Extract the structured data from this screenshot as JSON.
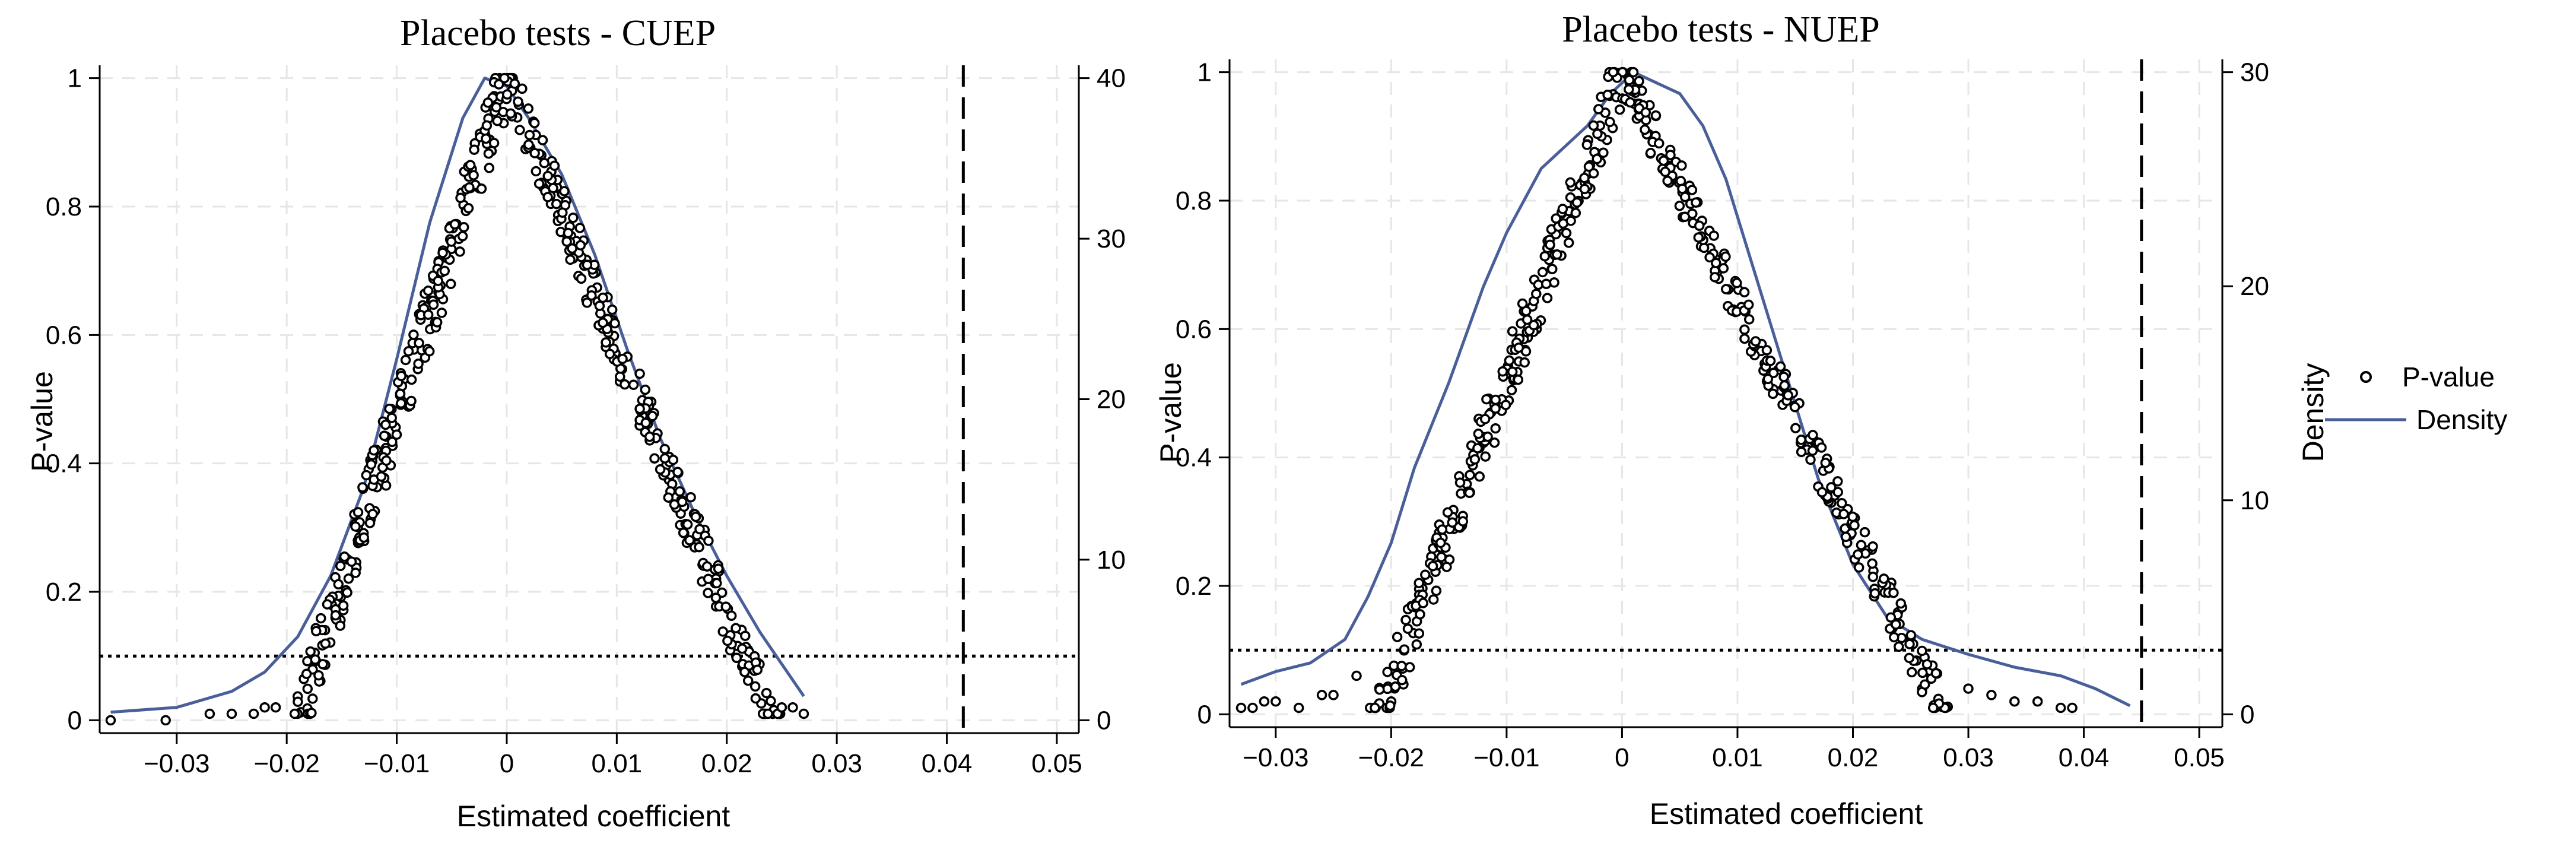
{
  "chart_data": [
    {
      "type": "scatter",
      "title": "Placebo tests - CUEP",
      "xlabel": "Estimated coefficient",
      "ylabel": "P-value",
      "y2label": "",
      "xlim": [
        -0.037,
        0.052
      ],
      "ylim": [
        -0.02,
        1.02
      ],
      "y2lim": [
        -0.8,
        40.8
      ],
      "x_ticks": [
        -0.03,
        -0.02,
        -0.01,
        0,
        0.01,
        0.02,
        0.03,
        0.04,
        0.05
      ],
      "x_tick_labels": [
        "−0.03",
        "−0.02",
        "−0.01",
        "0",
        "0.01",
        "0.02",
        "0.03",
        "0.04",
        "0.05"
      ],
      "y_ticks": [
        0,
        0.2,
        0.4,
        0.6,
        0.8,
        1
      ],
      "y_tick_labels": [
        "0",
        "0.2",
        "0.4",
        "0.6",
        "0.8",
        "1"
      ],
      "y2_ticks": [
        0,
        10,
        20,
        30,
        40
      ],
      "y2_tick_labels": [
        "0",
        "10",
        "20",
        "30",
        "40"
      ],
      "grid": true,
      "reference_lines": {
        "hline_pvalue": 0.1,
        "vline_coefficient": 0.0415
      },
      "series": [
        {
          "name": "P-value",
          "kind": "scatter",
          "axis": "left",
          "peak": 0,
          "left_edge_x": [
            -0.036,
            -0.031,
            -0.027,
            -0.025,
            -0.023,
            -0.022,
            -0.021
          ],
          "left_edge_y": [
            0.0,
            0.0,
            0.01,
            0.01,
            0.01,
            0.02,
            0.02
          ],
          "right_edge_x": [
            0.024,
            0.025,
            0.026,
            0.027
          ],
          "right_edge_y": [
            0.03,
            0.02,
            0.02,
            0.01
          ],
          "left_range": [
            -0.019,
            0
          ],
          "right_range": [
            0,
            0.024
          ],
          "n_points": 500
        },
        {
          "name": "Density",
          "kind": "line",
          "axis": "right",
          "x": [
            -0.036,
            -0.03,
            -0.025,
            -0.022,
            -0.019,
            -0.016,
            -0.013,
            -0.01,
            -0.007,
            -0.004,
            -0.002,
            0,
            0.002,
            0.005,
            0.008,
            0.011,
            0.014,
            0.017,
            0.02,
            0.023,
            0.025,
            0.027
          ],
          "y": [
            0.5,
            0.8,
            1.8,
            3.0,
            5.2,
            9.0,
            14.5,
            22.5,
            31.0,
            37.5,
            40.0,
            39.5,
            37.5,
            34.0,
            29.0,
            23.0,
            17.5,
            13.0,
            9.0,
            5.5,
            3.5,
            1.5
          ]
        }
      ]
    },
    {
      "type": "scatter",
      "title": "Placebo tests - NUEP",
      "xlabel": "Estimated coefficient",
      "ylabel": "P-value",
      "y2label": "Density",
      "xlim": [
        -0.034,
        0.052
      ],
      "ylim": [
        -0.02,
        1.02
      ],
      "y2lim": [
        -0.6,
        30.6
      ],
      "x_ticks": [
        -0.03,
        -0.02,
        -0.01,
        0,
        0.01,
        0.02,
        0.03,
        0.04,
        0.05
      ],
      "x_tick_labels": [
        "−0.03",
        "−0.02",
        "−0.01",
        "0",
        "0.01",
        "0.02",
        "0.03",
        "0.04",
        "0.05"
      ],
      "y_ticks": [
        0,
        0.2,
        0.4,
        0.6,
        0.8,
        1
      ],
      "y_tick_labels": [
        "0",
        "0.2",
        "0.4",
        "0.6",
        "0.8",
        "1"
      ],
      "y2_ticks": [
        0,
        10,
        20,
        30
      ],
      "y2_tick_labels": [
        "0",
        "10",
        "20",
        "30"
      ],
      "grid": true,
      "reference_lines": {
        "hline_pvalue": 0.1,
        "vline_coefficient": 0.045
      },
      "series": [
        {
          "name": "P-value",
          "kind": "scatter",
          "axis": "left",
          "peak": 0,
          "left_edge_x": [
            -0.033,
            -0.032,
            -0.031,
            -0.03,
            -0.028,
            -0.026,
            -0.025,
            -0.023
          ],
          "left_edge_y": [
            0.01,
            0.01,
            0.02,
            0.02,
            0.01,
            0.03,
            0.03,
            0.06
          ],
          "right_edge_x": [
            0.03,
            0.032,
            0.034,
            0.036,
            0.038,
            0.039
          ],
          "right_edge_y": [
            0.04,
            0.03,
            0.02,
            0.02,
            0.01,
            0.01
          ],
          "left_range": [
            -0.021,
            0
          ],
          "right_range": [
            0,
            0.028
          ],
          "n_points": 500
        },
        {
          "name": "Density",
          "kind": "line",
          "axis": "right",
          "x": [
            -0.033,
            -0.03,
            -0.027,
            -0.024,
            -0.022,
            -0.02,
            -0.018,
            -0.015,
            -0.012,
            -0.01,
            -0.007,
            -0.005,
            -0.003,
            -0.001,
            0.001,
            0.003,
            0.005,
            0.007,
            0.009,
            0.011,
            0.013,
            0.015,
            0.017,
            0.02,
            0.023,
            0.026,
            0.03,
            0.034,
            0.038,
            0.041,
            0.044
          ],
          "y": [
            1.4,
            2.0,
            2.4,
            3.5,
            5.5,
            8.0,
            11.5,
            15.5,
            20.0,
            22.5,
            25.5,
            26.5,
            27.5,
            29.0,
            30.0,
            29.5,
            29.0,
            27.5,
            25.0,
            21.5,
            18.0,
            14.5,
            11.0,
            7.0,
            4.5,
            3.5,
            2.8,
            2.2,
            1.8,
            1.2,
            0.4
          ]
        }
      ]
    }
  ],
  "legend": {
    "placement": "right",
    "entries": [
      {
        "label": "P-value",
        "symbol": "hollow-circle-marker"
      },
      {
        "label": "Density",
        "symbol": "line",
        "color": "#4a5f9a"
      }
    ]
  },
  "colors": {
    "density_line": "#4a5f9a",
    "markers": "#000000",
    "grid": "#e6e6e6",
    "axes": "#000000"
  }
}
